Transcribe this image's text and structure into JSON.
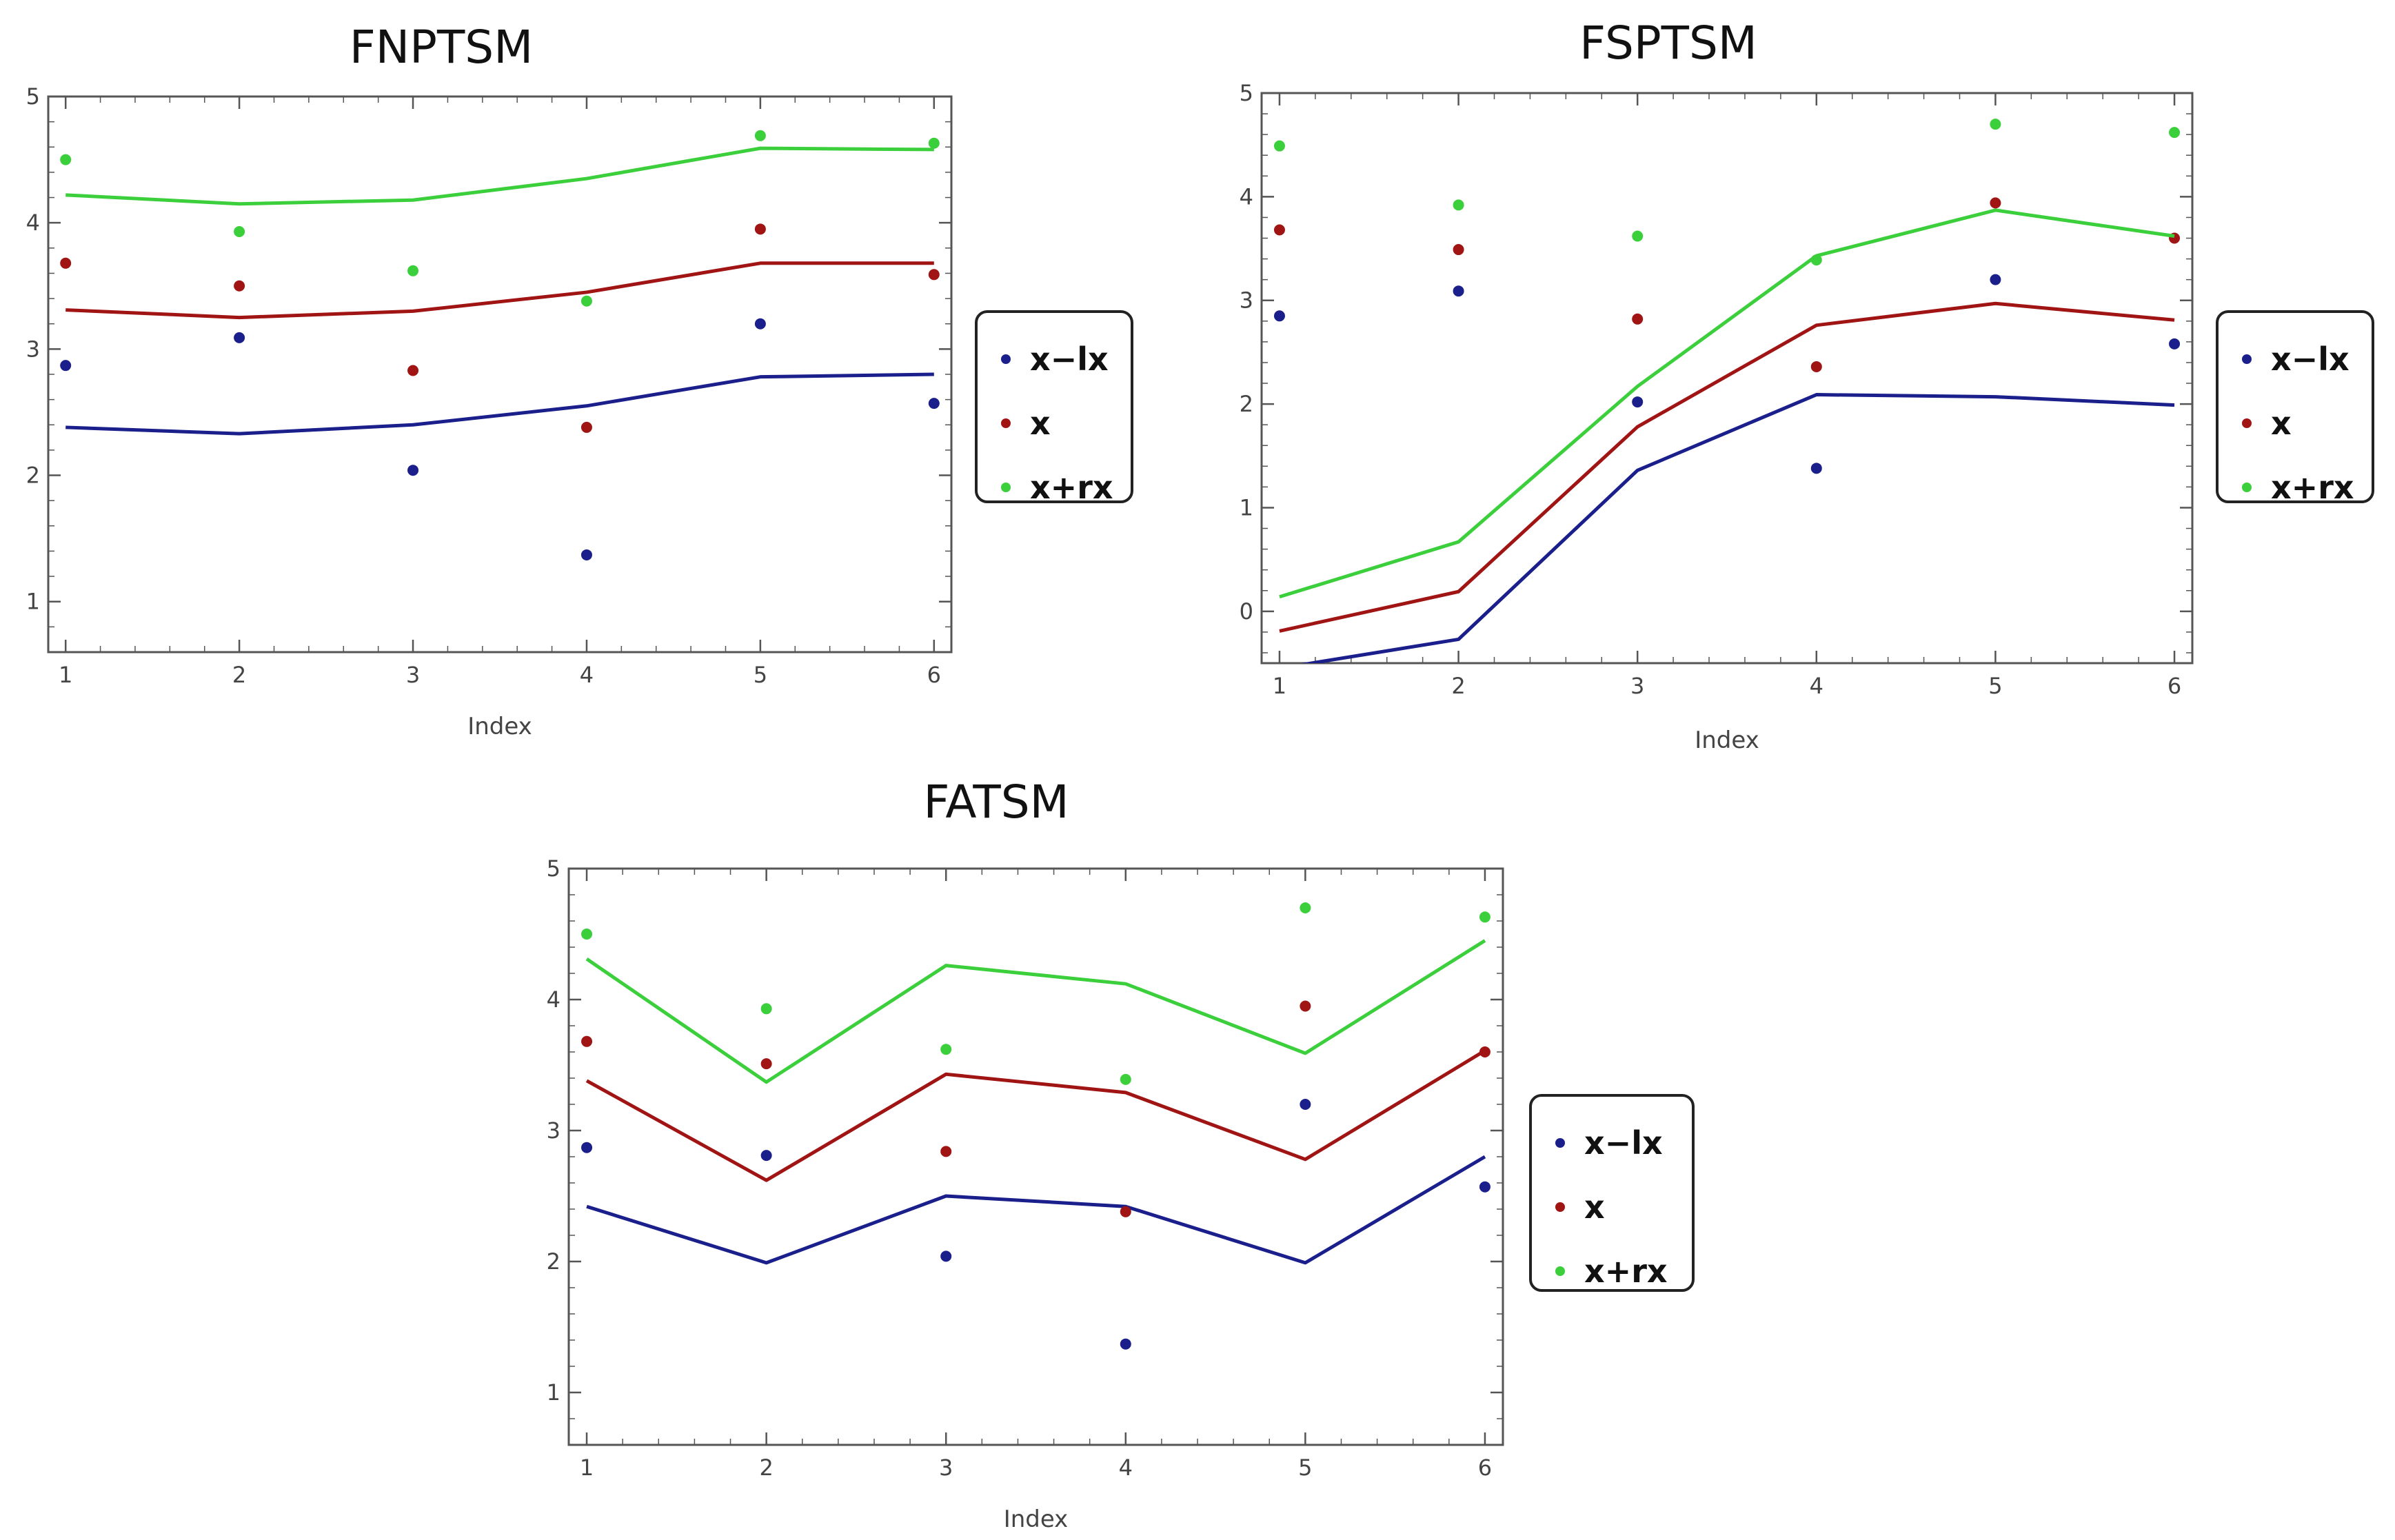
{
  "series_colors": {
    "x-lx": "#1a1f8c",
    "x": "#a01414",
    "x+rx": "#3ccf3c"
  },
  "chart_data": [
    {
      "type": "line",
      "title": "FNPTSM",
      "xlabel": "Index",
      "ylabel": "",
      "x": [
        1,
        2,
        3,
        4,
        5,
        6
      ],
      "xlim": [
        0.9,
        6.1
      ],
      "ylim": [
        0.6,
        5.0
      ],
      "yticks": [
        1,
        2,
        3,
        4,
        5
      ],
      "legend": [
        "x−lx",
        "x",
        "x+rx"
      ],
      "legend_position": "right",
      "series": [
        {
          "name": "x−lx",
          "color": "#1a1f8c",
          "line": [
            2.38,
            2.33,
            2.4,
            2.55,
            2.78,
            2.8
          ],
          "points": [
            2.87,
            3.09,
            2.04,
            1.37,
            3.2,
            2.57
          ]
        },
        {
          "name": "x",
          "color": "#a01414",
          "line": [
            3.31,
            3.25,
            3.3,
            3.45,
            3.68,
            3.68
          ],
          "points": [
            3.68,
            3.5,
            2.83,
            2.38,
            3.95,
            3.59
          ]
        },
        {
          "name": "x+rx",
          "color": "#3ccf3c",
          "line": [
            4.22,
            4.15,
            4.18,
            4.35,
            4.59,
            4.58
          ],
          "points": [
            4.5,
            3.93,
            3.62,
            3.38,
            4.69,
            4.63
          ]
        }
      ]
    },
    {
      "type": "line",
      "title": "FSPTSM",
      "xlabel": "Index",
      "ylabel": "",
      "x": [
        1,
        2,
        3,
        4,
        5,
        6
      ],
      "xlim": [
        0.9,
        6.1
      ],
      "ylim": [
        -0.5,
        5.0
      ],
      "yticks": [
        0,
        1,
        2,
        3,
        4,
        5
      ],
      "legend": [
        "x−lx",
        "x",
        "x+rx"
      ],
      "legend_position": "right",
      "series": [
        {
          "name": "x−lx",
          "color": "#1a1f8c",
          "line": [
            -0.55,
            -0.27,
            1.36,
            2.09,
            2.07,
            1.99
          ],
          "points": [
            2.85,
            3.09,
            2.02,
            1.38,
            3.2,
            2.58
          ]
        },
        {
          "name": "x",
          "color": "#a01414",
          "line": [
            -0.19,
            0.19,
            1.78,
            2.76,
            2.97,
            2.81
          ],
          "points": [
            3.68,
            3.49,
            2.82,
            2.36,
            3.94,
            3.6
          ]
        },
        {
          "name": "x+rx",
          "color": "#3ccf3c",
          "line": [
            0.14,
            0.67,
            2.17,
            3.43,
            3.87,
            3.62
          ],
          "points": [
            4.49,
            3.92,
            3.62,
            3.39,
            4.7,
            4.62
          ]
        }
      ]
    },
    {
      "type": "line",
      "title": "FATSM",
      "xlabel": "Index",
      "ylabel": "",
      "x": [
        1,
        2,
        3,
        4,
        5,
        6
      ],
      "xlim": [
        0.9,
        6.1
      ],
      "ylim": [
        0.6,
        5.0
      ],
      "yticks": [
        1,
        2,
        3,
        4,
        5
      ],
      "legend": [
        "x−lx",
        "x",
        "x+rx"
      ],
      "legend_position": "right",
      "series": [
        {
          "name": "x−lx",
          "color": "#1a1f8c",
          "line": [
            2.42,
            1.99,
            2.5,
            2.42,
            1.99,
            2.8
          ],
          "points": [
            2.87,
            2.81,
            2.04,
            1.37,
            3.2,
            2.57
          ]
        },
        {
          "name": "x",
          "color": "#a01414",
          "line": [
            3.38,
            2.62,
            3.43,
            3.29,
            2.78,
            3.61
          ],
          "points": [
            3.68,
            3.51,
            2.84,
            2.38,
            3.95,
            3.6
          ]
        },
        {
          "name": "x+rx",
          "color": "#3ccf3c",
          "line": [
            4.31,
            3.37,
            4.26,
            4.12,
            3.59,
            4.45
          ],
          "points": [
            4.5,
            3.93,
            3.62,
            3.39,
            4.7,
            4.63
          ]
        }
      ]
    }
  ]
}
